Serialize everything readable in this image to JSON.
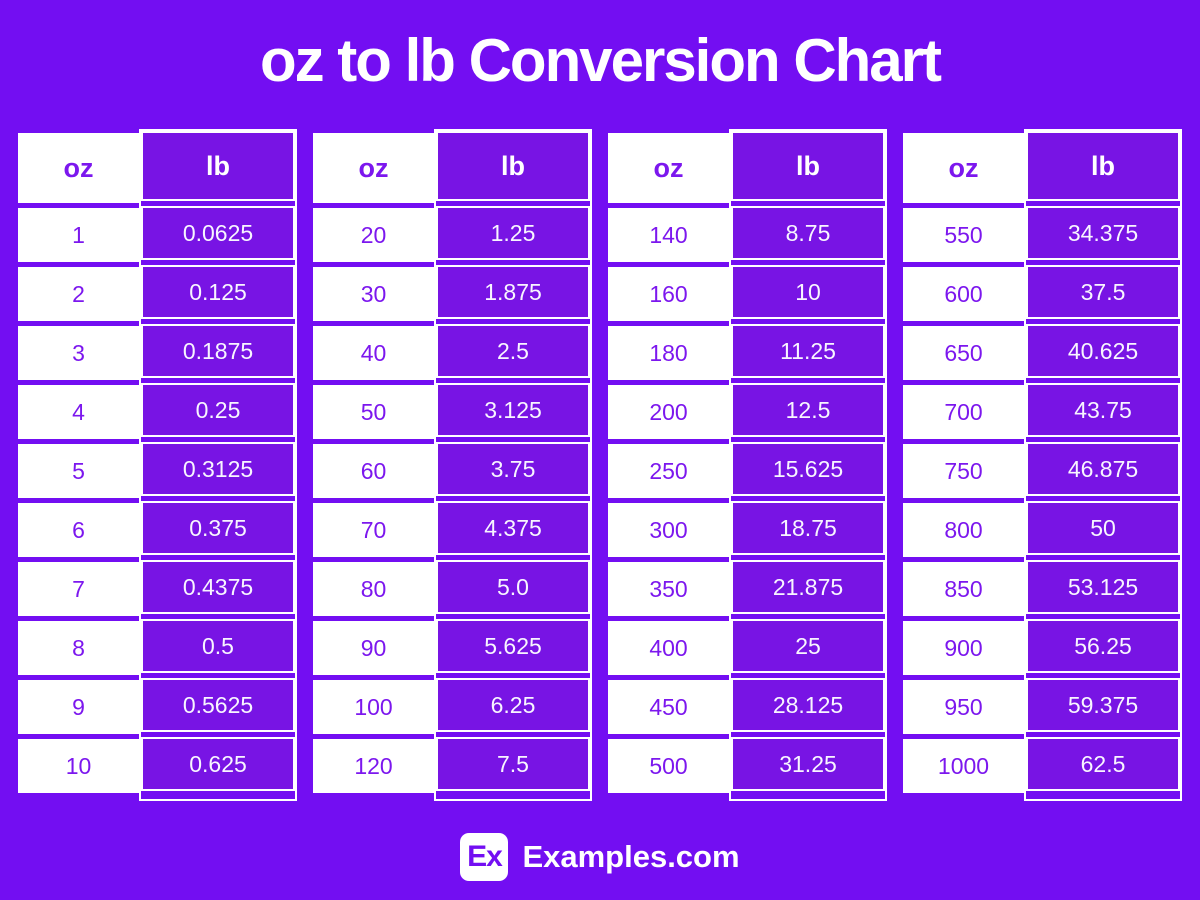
{
  "title": "oz to lb Conversion Chart",
  "header_labels": {
    "oz": "oz",
    "lb": "lb"
  },
  "tables": [
    {
      "rows": [
        [
          "1",
          "0.0625"
        ],
        [
          "2",
          "0.125"
        ],
        [
          "3",
          "0.1875"
        ],
        [
          "4",
          "0.25"
        ],
        [
          "5",
          "0.3125"
        ],
        [
          "6",
          "0.375"
        ],
        [
          "7",
          "0.4375"
        ],
        [
          "8",
          "0.5"
        ],
        [
          "9",
          "0.5625"
        ],
        [
          "10",
          "0.625"
        ]
      ]
    },
    {
      "rows": [
        [
          "20",
          "1.25"
        ],
        [
          "30",
          "1.875"
        ],
        [
          "40",
          "2.5"
        ],
        [
          "50",
          "3.125"
        ],
        [
          "60",
          "3.75"
        ],
        [
          "70",
          "4.375"
        ],
        [
          "80",
          "5.0"
        ],
        [
          "90",
          "5.625"
        ],
        [
          "100",
          "6.25"
        ],
        [
          "120",
          "7.5"
        ]
      ]
    },
    {
      "rows": [
        [
          "140",
          "8.75"
        ],
        [
          "160",
          "10"
        ],
        [
          "180",
          "11.25"
        ],
        [
          "200",
          "12.5"
        ],
        [
          "250",
          "15.625"
        ],
        [
          "300",
          "18.75"
        ],
        [
          "350",
          "21.875"
        ],
        [
          "400",
          "25"
        ],
        [
          "450",
          "28.125"
        ],
        [
          "500",
          "31.25"
        ]
      ]
    },
    {
      "rows": [
        [
          "550",
          "34.375"
        ],
        [
          "600",
          "37.5"
        ],
        [
          "650",
          "40.625"
        ],
        [
          "700",
          "43.75"
        ],
        [
          "750",
          "46.875"
        ],
        [
          "800",
          "50"
        ],
        [
          "850",
          "53.125"
        ],
        [
          "900",
          "56.25"
        ],
        [
          "950",
          "59.375"
        ],
        [
          "1000",
          "62.5"
        ]
      ]
    }
  ],
  "footer": {
    "logo_text": "Ex",
    "site_name": "Examples.com"
  },
  "colors": {
    "background": "#730EF2",
    "cell_purple": "#7814E4",
    "text_purple": "#7C17EE",
    "value_text": "#F8F5FF",
    "title_text": "#FFFFFF"
  },
  "chart_data": {
    "type": "table",
    "title": "oz to lb Conversion Chart",
    "columns": [
      "oz",
      "lb"
    ],
    "rows": [
      [
        1,
        0.0625
      ],
      [
        2,
        0.125
      ],
      [
        3,
        0.1875
      ],
      [
        4,
        0.25
      ],
      [
        5,
        0.3125
      ],
      [
        6,
        0.375
      ],
      [
        7,
        0.4375
      ],
      [
        8,
        0.5
      ],
      [
        9,
        0.5625
      ],
      [
        10,
        0.625
      ],
      [
        20,
        1.25
      ],
      [
        30,
        1.875
      ],
      [
        40,
        2.5
      ],
      [
        50,
        3.125
      ],
      [
        60,
        3.75
      ],
      [
        70,
        4.375
      ],
      [
        80,
        5.0
      ],
      [
        90,
        5.625
      ],
      [
        100,
        6.25
      ],
      [
        120,
        7.5
      ],
      [
        140,
        8.75
      ],
      [
        160,
        10
      ],
      [
        180,
        11.25
      ],
      [
        200,
        12.5
      ],
      [
        250,
        15.625
      ],
      [
        300,
        18.75
      ],
      [
        350,
        21.875
      ],
      [
        400,
        25
      ],
      [
        450,
        28.125
      ],
      [
        500,
        31.25
      ],
      [
        550,
        34.375
      ],
      [
        600,
        37.5
      ],
      [
        650,
        40.625
      ],
      [
        700,
        43.75
      ],
      [
        750,
        46.875
      ],
      [
        800,
        50
      ],
      [
        850,
        53.125
      ],
      [
        900,
        56.25
      ],
      [
        950,
        59.375
      ],
      [
        1000,
        62.5
      ]
    ]
  }
}
